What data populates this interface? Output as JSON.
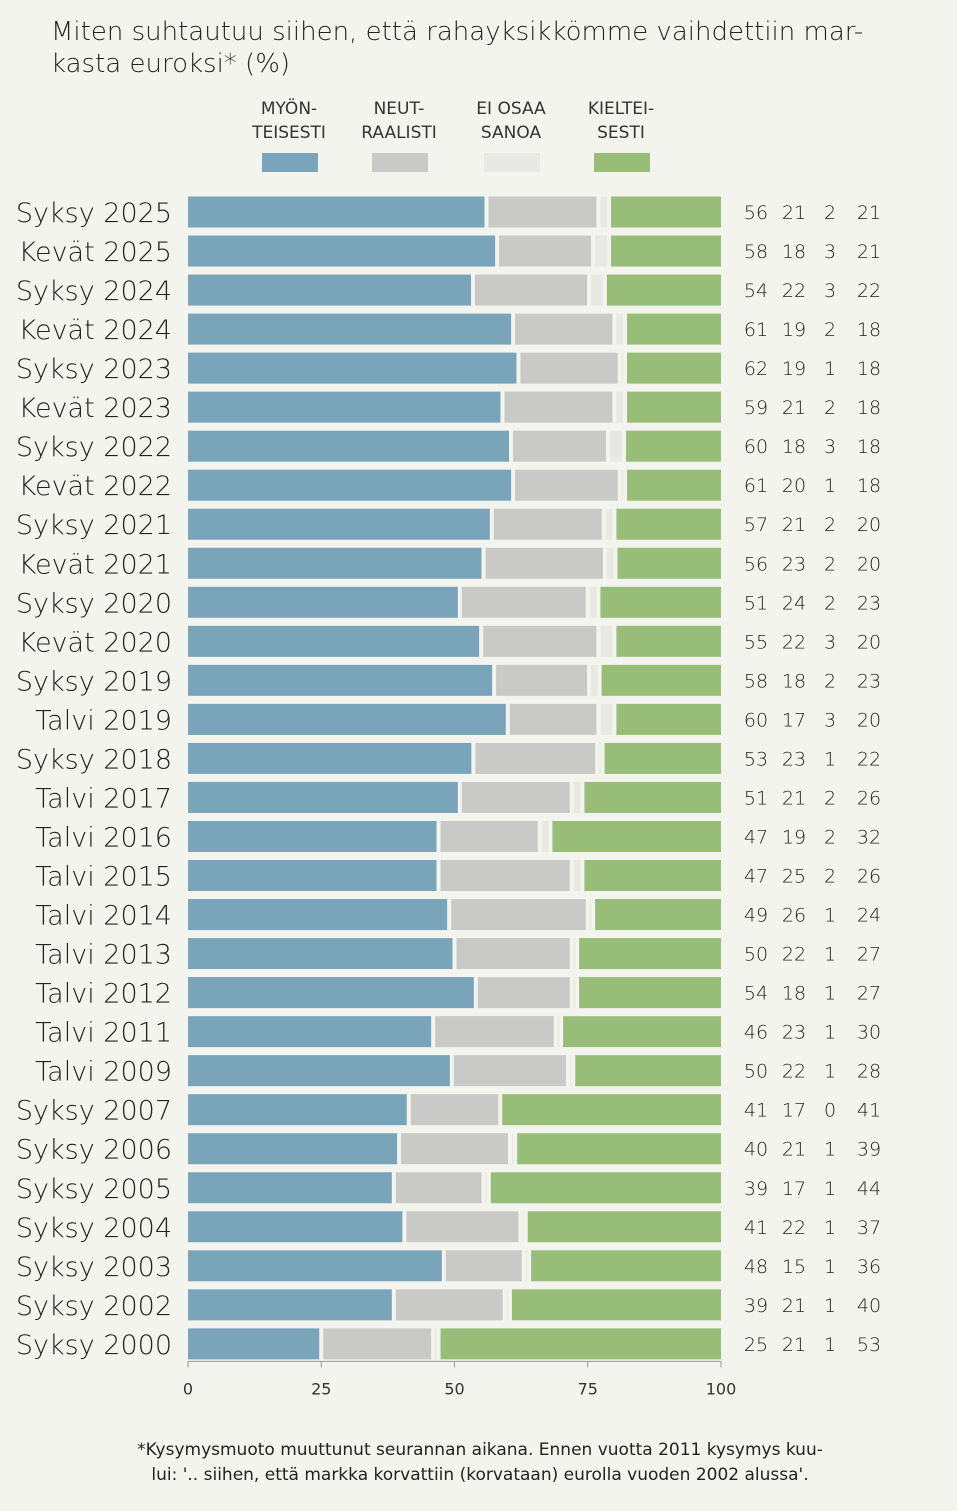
{
  "title": "Miten suhtautuu siihen, että rahayksikkömme vaihdettiin mar-kasta euroksi* (%)",
  "title_lines": [
    "Miten suhtautuu siihen, että rahayksikkömme vaihdettiin mar-",
    "kasta euroksi* (%)"
  ],
  "footnote_lines": [
    "*Kysymysmuoto muuttunut seurannan aikana. Ennen vuotta 2011 kysymys kuu-",
    "lui: '.. siihen, että markka korvattiin (korvataan) eurolla vuoden 2002 alussa'."
  ],
  "colors": {
    "myonteisesti": "#79a4b9",
    "neutraalisti": "#c9c9c7",
    "ei_osaa": "#e8e8e5",
    "kielteisesti": "#97bd78",
    "background": "#f4f4ef"
  },
  "chart_data": {
    "type": "bar",
    "stacked": true,
    "orientation": "horizontal",
    "title": "Miten suhtautuu siihen, että rahayksikkömme vaihdettiin markasta euroksi* (%)",
    "xlim": [
      0,
      100
    ],
    "xticks": [
      "0",
      "25",
      "50",
      "75",
      "100"
    ],
    "legend": [
      {
        "line1": "MYÖN-",
        "line2": "TEISESTI"
      },
      {
        "line1": "NEUT-",
        "line2": "RAALISTI"
      },
      {
        "line1": "EI OSAA",
        "line2": "SANOA"
      },
      {
        "line1": "KIELTEI-",
        "line2": "SESTI"
      }
    ],
    "categories": [
      "Syksy 2025",
      "Kevät 2025",
      "Syksy 2024",
      "Kevät 2024",
      "Syksy 2023",
      "Kevät 2023",
      "Syksy 2022",
      "Kevät 2022",
      "Syksy 2021",
      "Kevät 2021",
      "Syksy 2020",
      "Kevät 2020",
      "Syksy 2019",
      "Talvi 2019",
      "Syksy 2018",
      "Talvi 2017",
      "Talvi 2016",
      "Talvi 2015",
      "Talvi 2014",
      "Talvi 2013",
      "Talvi 2012",
      "Talvi 2011",
      "Talvi 2009",
      "Syksy 2007",
      "Syksy 2006",
      "Syksy 2005",
      "Syksy 2004",
      "Syksy 2003",
      "Syksy 2002",
      "Syksy 2000"
    ],
    "series": [
      {
        "name": "Myönteisesti",
        "values": [
          56,
          58,
          54,
          61,
          62,
          59,
          60,
          61,
          57,
          56,
          51,
          55,
          58,
          60,
          53,
          51,
          47,
          47,
          49,
          50,
          54,
          46,
          50,
          41,
          40,
          39,
          41,
          48,
          39,
          25
        ]
      },
      {
        "name": "Neutraalisti",
        "values": [
          21,
          18,
          22,
          19,
          19,
          21,
          18,
          20,
          21,
          23,
          24,
          22,
          18,
          17,
          23,
          21,
          19,
          25,
          26,
          22,
          18,
          23,
          22,
          17,
          21,
          17,
          22,
          15,
          21,
          21
        ]
      },
      {
        "name": "Ei osaa sanoa",
        "values": [
          2,
          3,
          3,
          2,
          1,
          2,
          3,
          1,
          2,
          2,
          2,
          3,
          2,
          3,
          1,
          2,
          2,
          2,
          1,
          1,
          1,
          1,
          1,
          0,
          1,
          1,
          1,
          1,
          1,
          1
        ]
      },
      {
        "name": "Kielteisesti",
        "values": [
          21,
          21,
          22,
          18,
          18,
          18,
          18,
          18,
          20,
          20,
          23,
          20,
          23,
          20,
          22,
          26,
          32,
          26,
          24,
          27,
          27,
          30,
          28,
          41,
          39,
          44,
          37,
          36,
          40,
          53
        ]
      }
    ]
  }
}
